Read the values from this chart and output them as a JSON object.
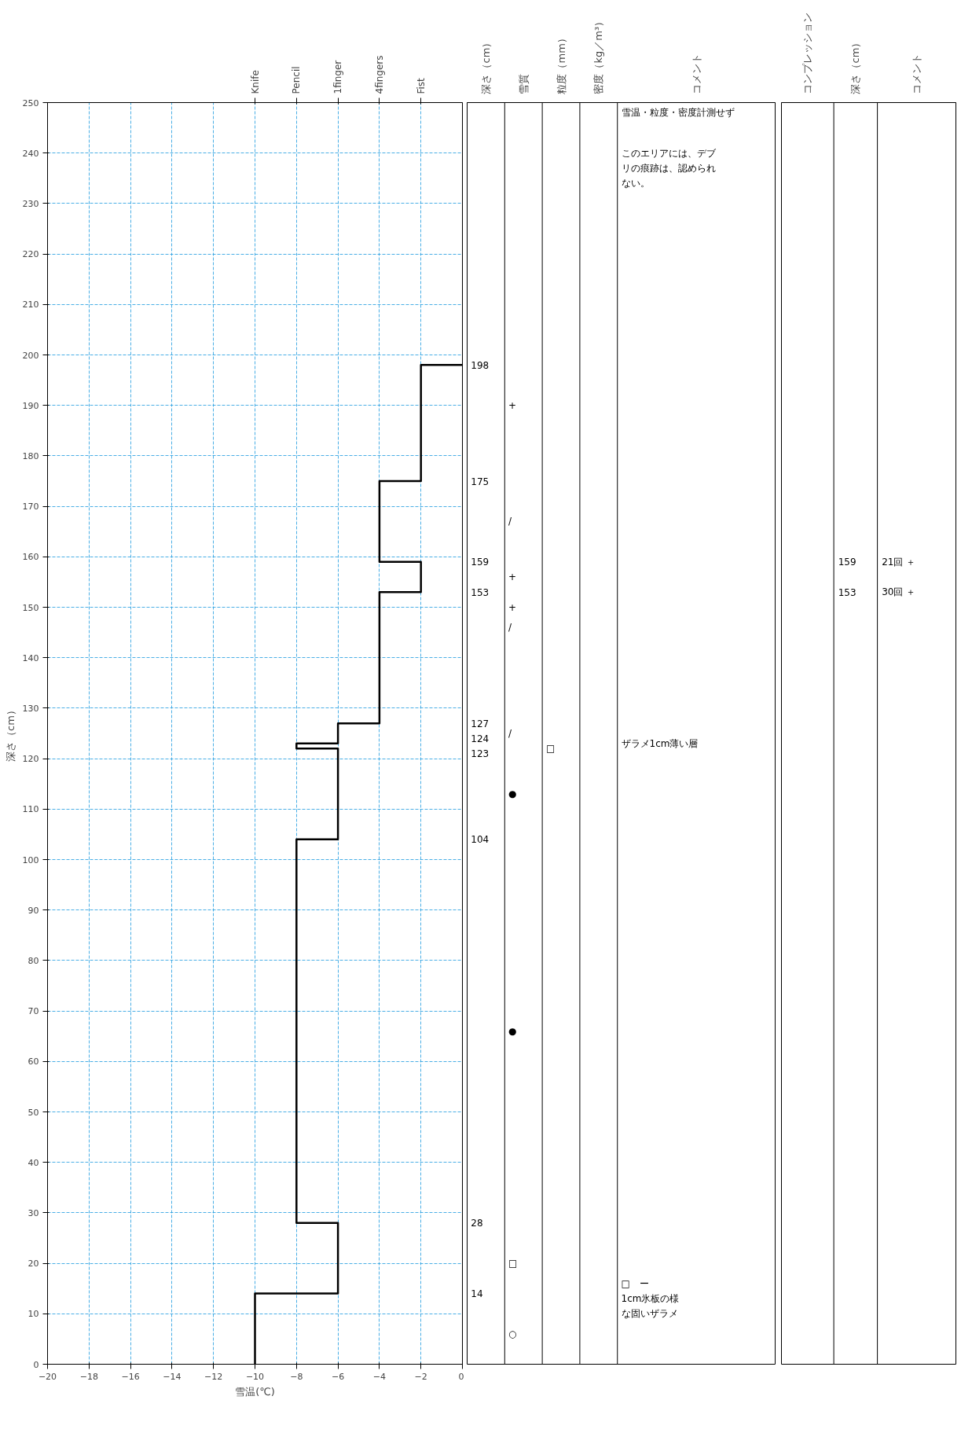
{
  "chart_data": [
    {
      "type": "line",
      "xlabel": "雪温(℃)",
      "ylabel": "深さ（cm）",
      "xlim": [
        -20,
        0
      ],
      "xticks": [
        -20,
        -18,
        -16,
        -14,
        -12,
        -10,
        -8,
        -6,
        -4,
        -2,
        0
      ],
      "ylim": [
        0,
        250
      ],
      "yticks": [
        0,
        10,
        20,
        30,
        40,
        50,
        60,
        70,
        80,
        90,
        100,
        110,
        120,
        130,
        140,
        150,
        160,
        170,
        180,
        190,
        200,
        210,
        220,
        230,
        240,
        250
      ],
      "grid": true,
      "annotations": [
        {
          "text": "Knife",
          "x": -10
        },
        {
          "text": "Pencil",
          "x": -8
        },
        {
          "text": "1finger",
          "x": -6
        },
        {
          "text": "4fingers",
          "x": -4
        },
        {
          "text": "Fist",
          "x": -2
        }
      ],
      "series": [
        {
          "color": "#000000",
          "x": [
            -10,
            -10,
            -6,
            -6,
            -8,
            -8,
            -6,
            -6,
            -8,
            -8,
            -6,
            -6,
            -4,
            -4,
            -2,
            -2,
            -4,
            -4,
            -2,
            -2,
            0
          ],
          "values": [
            0,
            14,
            14,
            28,
            28,
            104,
            104,
            122,
            122,
            123,
            123,
            127,
            127,
            153,
            153,
            159,
            159,
            175,
            175,
            198,
            198
          ]
        }
      ]
    },
    {
      "type": "other",
      "categories": [
        "深さ（cm）",
        "雪質",
        "粒度（mm）",
        "密度（kg／m³）",
        "コメント"
      ],
      "annotations": [
        "198",
        "175",
        "159",
        "153",
        "127",
        "124",
        "123",
        "104",
        "28",
        "14",
        "+",
        "/",
        "+",
        "+",
        "/",
        "/",
        "●",
        "●",
        "□",
        "○",
        "□",
        "雪温・粒度・密度計測せず",
        "このエリアには、デブ",
        "リの痕跡は、認められ",
        "ない。",
        "ザラメ1cm薄い層",
        "□　ー",
        "1cm氷板の様",
        "な固いザラメ"
      ]
    },
    {
      "type": "other",
      "categories": [
        "コンプレッション",
        "深さ（cm）",
        "コメント"
      ],
      "annotations": [
        "159",
        "153",
        "21回 ＋",
        "30回 ＋"
      ]
    }
  ]
}
